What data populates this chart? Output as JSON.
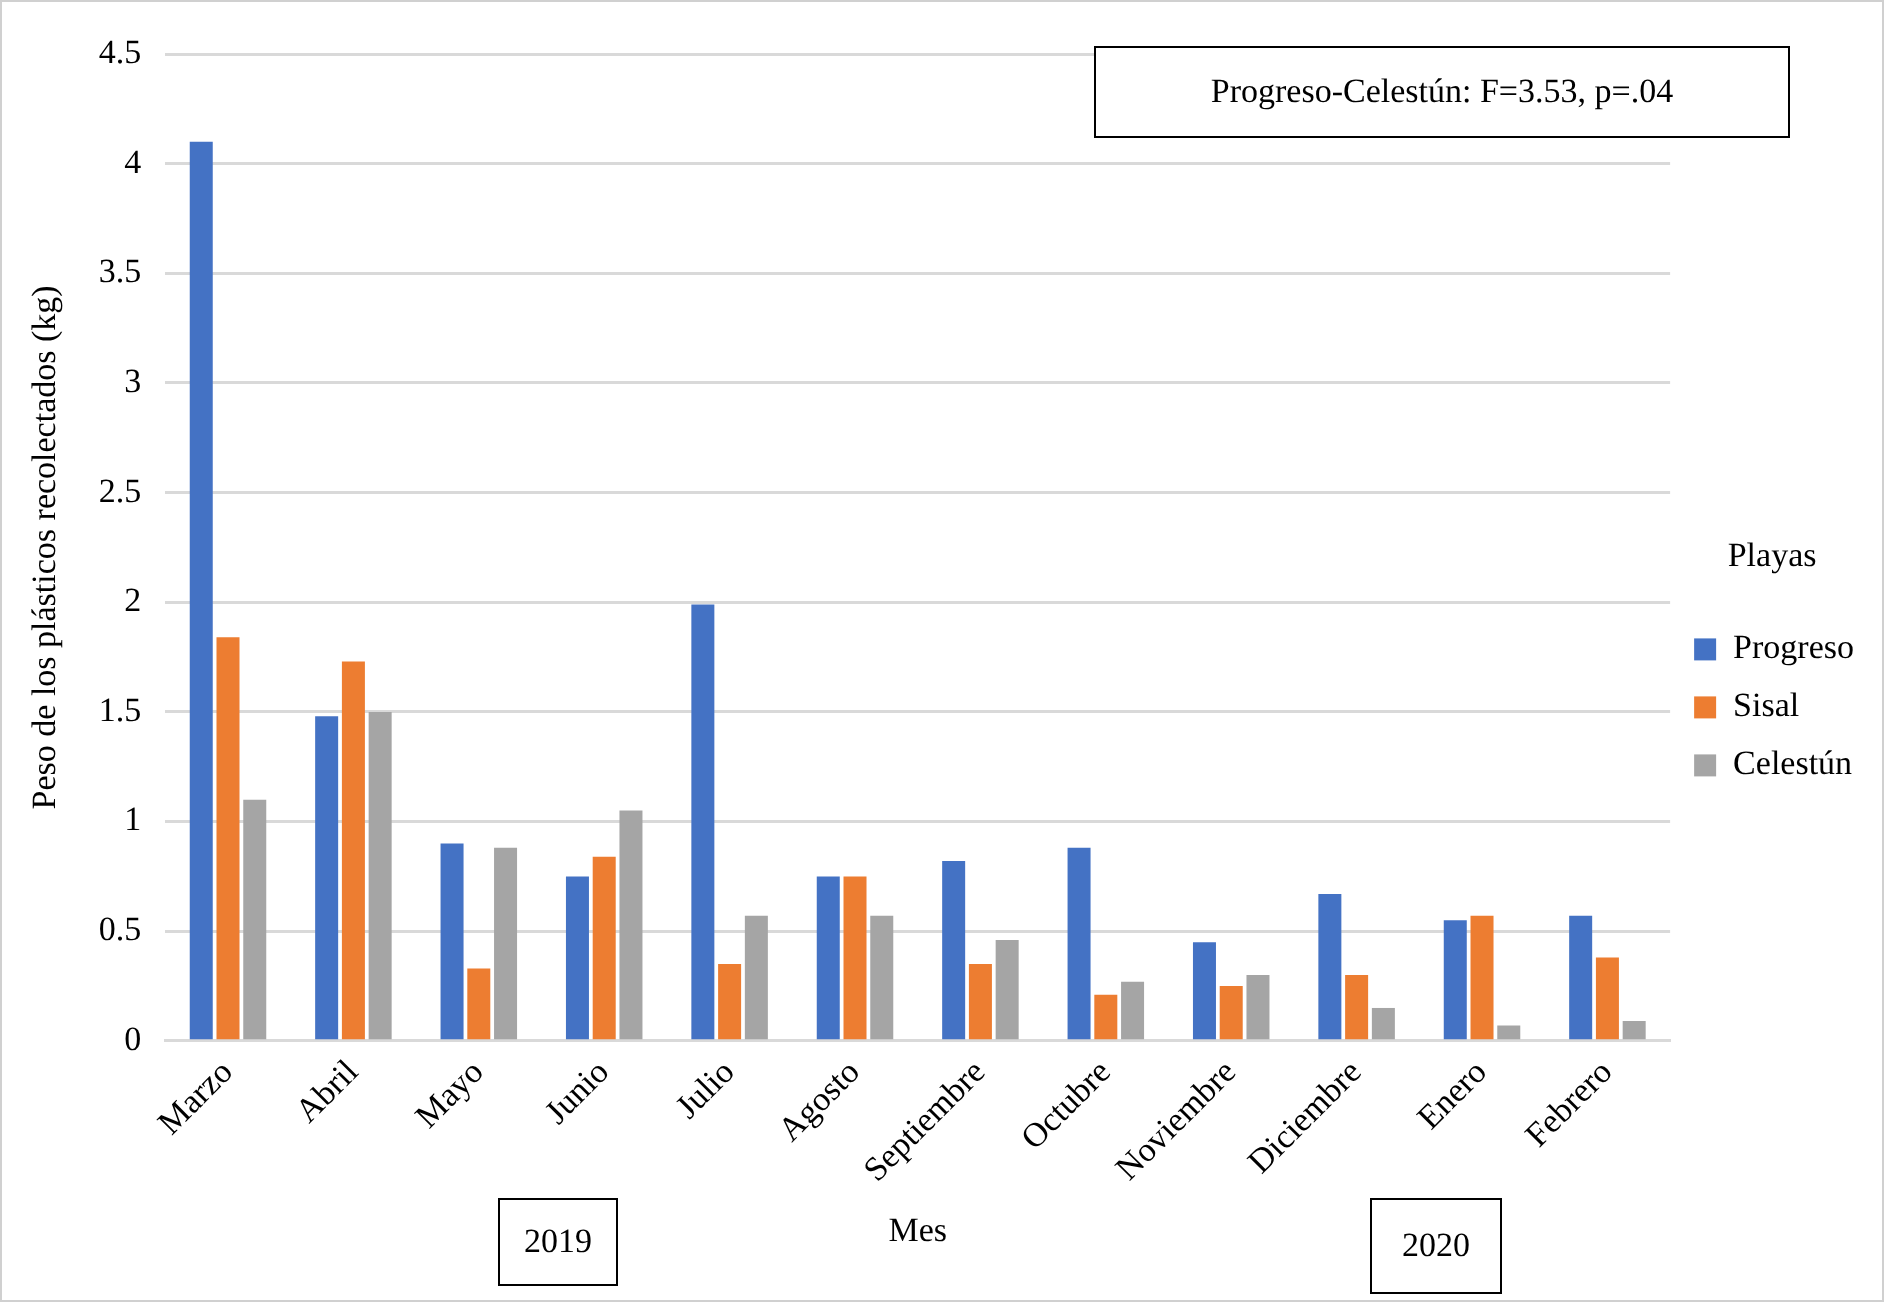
{
  "chart_data": {
    "type": "bar",
    "xlabel": "Mes",
    "ylabel": "Peso de los plásticos recolectados (kg)",
    "legend_title": "Playas",
    "categories": [
      "Marzo",
      "Abril",
      "Mayo",
      "Junio",
      "Julio",
      "Agosto",
      "Septiembre",
      "Octubre",
      "Noviembre",
      "Diciembre",
      "Enero",
      "Febrero"
    ],
    "series": [
      {
        "name": "Progreso",
        "color": "#4472c4",
        "values": [
          4.1,
          1.48,
          0.9,
          0.75,
          1.99,
          0.75,
          0.82,
          0.88,
          0.45,
          0.67,
          0.55,
          0.57
        ]
      },
      {
        "name": "Sisal",
        "color": "#ed7d31",
        "values": [
          1.84,
          1.73,
          0.33,
          0.84,
          0.35,
          0.75,
          0.35,
          0.21,
          0.25,
          0.3,
          0.57,
          0.38
        ]
      },
      {
        "name": "Celestún",
        "color": "#a5a5a5",
        "values": [
          1.1,
          1.5,
          0.88,
          1.05,
          0.57,
          0.57,
          0.46,
          0.27,
          0.3,
          0.15,
          0.07,
          0.09
        ]
      }
    ],
    "ylim": [
      0,
      4.5
    ],
    "yticks": [
      0,
      0.5,
      1,
      1.5,
      2,
      2.5,
      3,
      3.5,
      4,
      4.5
    ],
    "grid": "y",
    "legend": "right",
    "annotations": [
      "Progreso-Celestún: F=3.53, p=.04",
      "2019",
      "2020"
    ]
  }
}
